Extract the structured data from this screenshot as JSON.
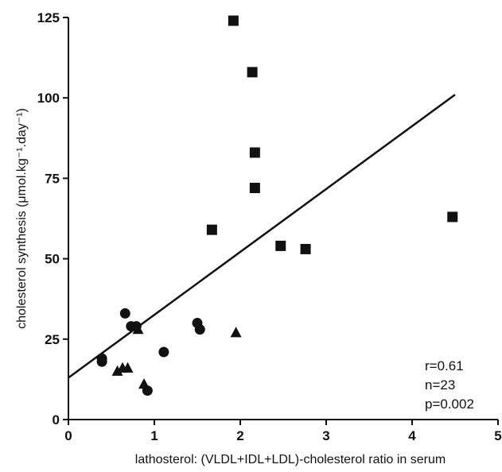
{
  "chart_data": {
    "type": "scatter",
    "title": "",
    "xlabel": "lathosterol: (VLDL+IDL+LDL)-cholesterol ratio in serum",
    "ylabel": "cholesterol synthesis (μmol.kg⁻¹.day⁻¹)",
    "xlim": [
      0,
      5
    ],
    "ylim": [
      0,
      125
    ],
    "x_ticks": [
      "0",
      "1",
      "2",
      "3",
      "4",
      "5"
    ],
    "y_ticks": [
      "0",
      "25",
      "50",
      "75",
      "100",
      "125"
    ],
    "grid": false,
    "series": [
      {
        "marker": "square",
        "points": [
          {
            "x": 1.92,
            "y": 124
          },
          {
            "x": 2.14,
            "y": 108
          },
          {
            "x": 2.17,
            "y": 83
          },
          {
            "x": 2.17,
            "y": 72
          },
          {
            "x": 1.67,
            "y": 59
          },
          {
            "x": 2.47,
            "y": 54
          },
          {
            "x": 2.76,
            "y": 53
          },
          {
            "x": 4.47,
            "y": 63
          }
        ]
      },
      {
        "marker": "circle",
        "points": [
          {
            "x": 0.39,
            "y": 19
          },
          {
            "x": 0.39,
            "y": 18
          },
          {
            "x": 0.66,
            "y": 33
          },
          {
            "x": 0.73,
            "y": 29
          },
          {
            "x": 0.79,
            "y": 29
          },
          {
            "x": 1.11,
            "y": 21
          },
          {
            "x": 1.5,
            "y": 30
          },
          {
            "x": 1.53,
            "y": 28
          },
          {
            "x": 0.92,
            "y": 9
          }
        ]
      },
      {
        "marker": "triangle",
        "points": [
          {
            "x": 0.81,
            "y": 28
          },
          {
            "x": 0.57,
            "y": 15
          },
          {
            "x": 0.63,
            "y": 16
          },
          {
            "x": 0.69,
            "y": 16
          },
          {
            "x": 0.88,
            "y": 11
          },
          {
            "x": 1.95,
            "y": 27
          }
        ]
      }
    ],
    "regression_line": {
      "x": [
        0,
        4.5
      ],
      "y": [
        13,
        101
      ]
    },
    "annotations": [
      "r=0.61",
      "n=23",
      "p=0.002"
    ],
    "annotation_position": "bottom-right",
    "colors": {
      "marker": "#111111",
      "line": "#111111",
      "axis": "#111111"
    }
  }
}
